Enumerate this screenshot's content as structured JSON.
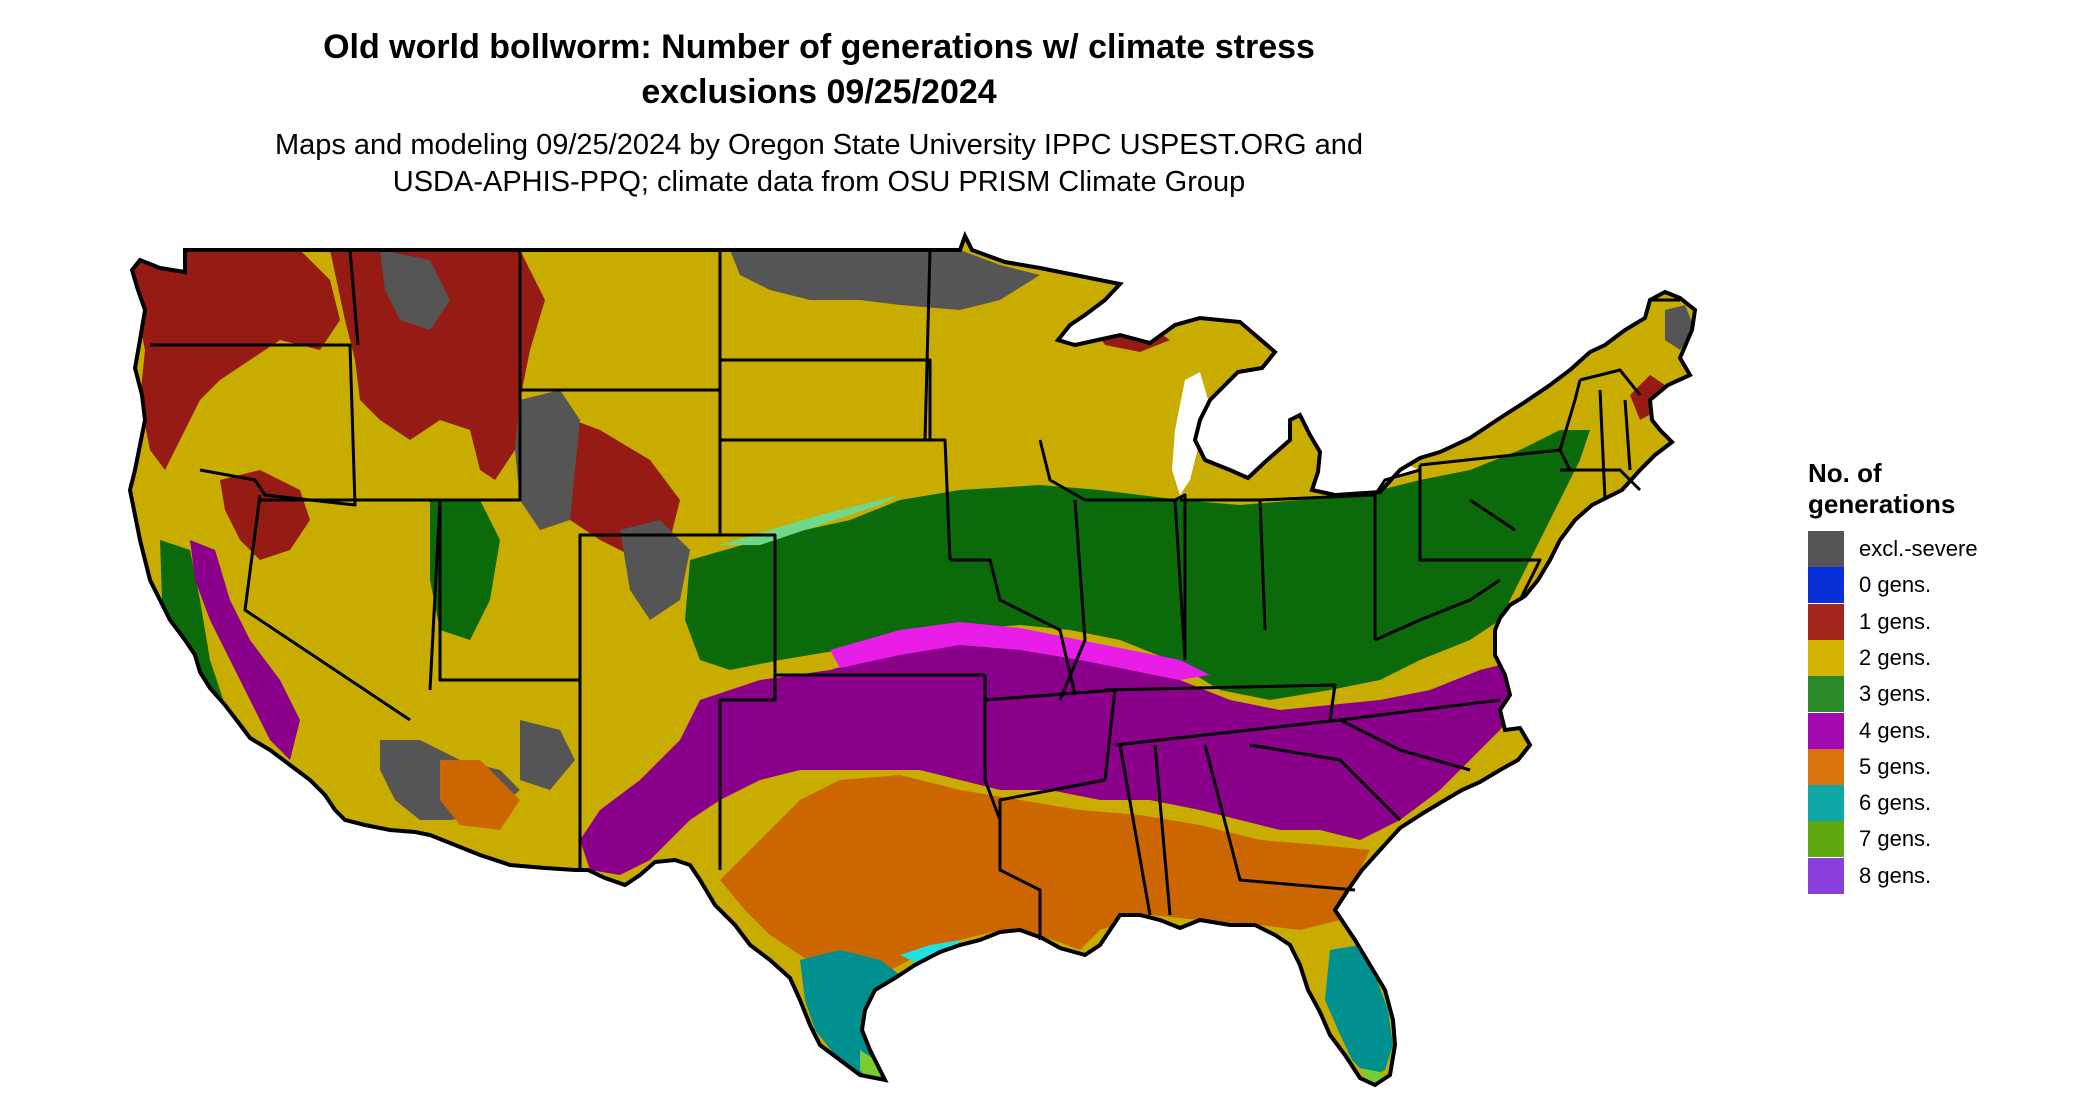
{
  "title": {
    "line1": "Old world bollworm: Number of generations w/ climate stress",
    "line2": "exclusions 09/25/2024"
  },
  "subtitle": {
    "line1": "Maps and modeling 09/25/2024 by Oregon State University IPPC USPEST.ORG and",
    "line2": "USDA-APHIS-PPQ; climate data from OSU PRISM Climate Group"
  },
  "legend": {
    "title_line1": "No. of",
    "title_line2": "generations",
    "items": [
      {
        "label": "excl.-severe",
        "color": "#555555"
      },
      {
        "label": "0 gens.",
        "color": "#0a2fd9"
      },
      {
        "label": "1 gens.",
        "color": "#a3241a"
      },
      {
        "label": "2 gens.",
        "color": "#d1b300"
      },
      {
        "label": "3 gens.",
        "color": "#2a8a2a"
      },
      {
        "label": "4 gens.",
        "color": "#a40ab2"
      },
      {
        "label": "5 gens.",
        "color": "#d9730e"
      },
      {
        "label": "6 gens.",
        "color": "#11a6a6"
      },
      {
        "label": "7 gens.",
        "color": "#5fa80f"
      },
      {
        "label": "8 gens.",
        "color": "#8a3fdc"
      }
    ]
  },
  "map": {
    "colors": {
      "excl": "#555555",
      "g0": "#0a2fd9",
      "g1": "#951b14",
      "g2": "#c9ac00",
      "g3": "#0b6b0b",
      "g3light": "#6fd88a",
      "g4": "#8a008a",
      "g4light": "#e81ee8",
      "g5": "#cc6600",
      "g5light": "#e0893a",
      "g6": "#009090",
      "g6light": "#22e0e0",
      "g7": "#7acc33",
      "border": "#000000"
    }
  }
}
